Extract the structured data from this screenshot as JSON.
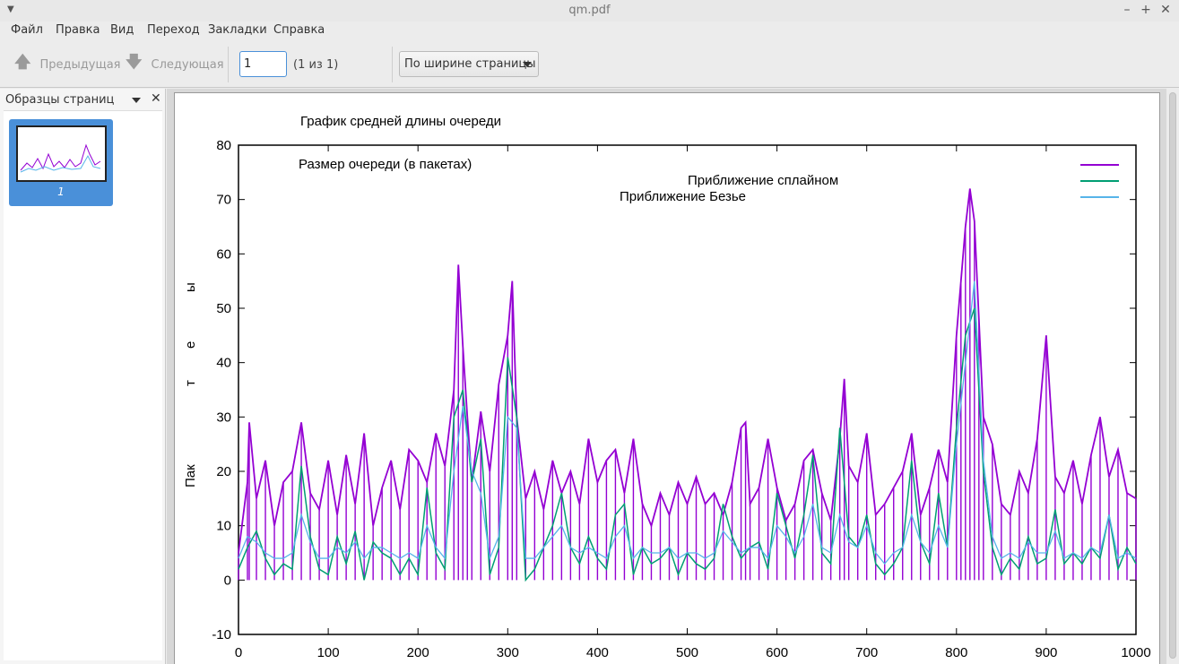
{
  "window": {
    "title": "qm.pdf"
  },
  "menu": [
    "Файл",
    "Правка",
    "Вид",
    "Переход",
    "Закладки",
    "Справка"
  ],
  "toolbar": {
    "prev_label": "Предыдущая",
    "next_label": "Следующая",
    "page_value": "1",
    "page_count": "(1 из 1)",
    "zoom_value": "По ширине страницы"
  },
  "sidebar": {
    "title": "Образцы страниц",
    "thumb_number": "1"
  },
  "colors": {
    "accent": "#4a90d9",
    "series1": "#9400d3",
    "series2": "#009e73",
    "series3": "#56b4e9"
  },
  "chart_data": {
    "type": "line",
    "title": "График средней длины очереди",
    "xlabel": "",
    "ylabel": "Пак      т    е    ы",
    "xlim": [
      0,
      1000
    ],
    "ylim": [
      -10,
      80
    ],
    "xticks": [
      0,
      100,
      200,
      300,
      400,
      500,
      600,
      700,
      800,
      900,
      1000
    ],
    "yticks": [
      -10,
      0,
      10,
      20,
      30,
      40,
      50,
      60,
      70,
      80
    ],
    "legend_position": "top-right",
    "series": [
      {
        "name": "Размер очереди (в пакетах)",
        "x": [
          0,
          10,
          12,
          20,
          30,
          40,
          50,
          60,
          70,
          80,
          90,
          100,
          110,
          120,
          130,
          140,
          150,
          160,
          170,
          180,
          190,
          200,
          210,
          220,
          230,
          240,
          245,
          250,
          255,
          260,
          270,
          280,
          290,
          300,
          305,
          310,
          320,
          330,
          340,
          350,
          360,
          370,
          380,
          390,
          400,
          410,
          420,
          430,
          440,
          450,
          460,
          470,
          480,
          490,
          500,
          510,
          520,
          530,
          540,
          550,
          560,
          565,
          570,
          580,
          590,
          600,
          610,
          620,
          630,
          640,
          650,
          660,
          670,
          675,
          680,
          690,
          700,
          710,
          720,
          730,
          740,
          750,
          760,
          770,
          780,
          790,
          800,
          805,
          810,
          815,
          820,
          825,
          830,
          840,
          850,
          860,
          870,
          880,
          890,
          900,
          910,
          920,
          930,
          940,
          950,
          960,
          970,
          980,
          990,
          1000
        ],
        "y": [
          5,
          18,
          29,
          15,
          22,
          10,
          18,
          20,
          29,
          16,
          13,
          22,
          12,
          23,
          14,
          27,
          10,
          17,
          22,
          13,
          24,
          22,
          18,
          27,
          21,
          35,
          58,
          43,
          30,
          18,
          31,
          20,
          36,
          45,
          55,
          30,
          15,
          20,
          13,
          22,
          16,
          20,
          14,
          26,
          18,
          22,
          24,
          16,
          26,
          14,
          10,
          16,
          12,
          18,
          14,
          19,
          14,
          16,
          12,
          18,
          28,
          29,
          14,
          17,
          26,
          17,
          11,
          14,
          22,
          24,
          16,
          11,
          26,
          37,
          21,
          18,
          27,
          12,
          14,
          17,
          20,
          27,
          12,
          17,
          24,
          18,
          45,
          55,
          65,
          72,
          66,
          48,
          30,
          25,
          14,
          12,
          20,
          16,
          26,
          45,
          19,
          16,
          22,
          14,
          23,
          30,
          19,
          24,
          16,
          15
        ]
      },
      {
        "name": "Приближение сплайном",
        "x": [
          0,
          10,
          20,
          30,
          40,
          50,
          60,
          70,
          80,
          90,
          100,
          110,
          120,
          130,
          140,
          150,
          160,
          170,
          180,
          190,
          200,
          210,
          220,
          230,
          240,
          250,
          260,
          270,
          280,
          290,
          300,
          310,
          320,
          330,
          340,
          350,
          360,
          370,
          380,
          390,
          400,
          410,
          420,
          430,
          440,
          450,
          460,
          470,
          480,
          490,
          500,
          510,
          520,
          530,
          540,
          550,
          560,
          570,
          580,
          590,
          600,
          610,
          620,
          630,
          640,
          650,
          660,
          670,
          680,
          690,
          700,
          710,
          720,
          730,
          740,
          750,
          760,
          770,
          780,
          790,
          800,
          810,
          820,
          830,
          840,
          850,
          860,
          870,
          880,
          890,
          900,
          910,
          920,
          930,
          940,
          950,
          960,
          970,
          980,
          990,
          1000
        ],
        "y": [
          2,
          6,
          9,
          4,
          1,
          3,
          2,
          21,
          8,
          2,
          1,
          8,
          3,
          9,
          0,
          7,
          5,
          4,
          1,
          4,
          1,
          17,
          5,
          2,
          30,
          35,
          18,
          26,
          1,
          6,
          41,
          30,
          0,
          2,
          6,
          10,
          16,
          6,
          3,
          8,
          4,
          2,
          12,
          14,
          1,
          6,
          3,
          4,
          6,
          1,
          5,
          3,
          2,
          4,
          14,
          8,
          4,
          6,
          7,
          2,
          16,
          10,
          4,
          12,
          23,
          5,
          3,
          28,
          8,
          6,
          12,
          3,
          1,
          3,
          6,
          22,
          7,
          3,
          16,
          6,
          28,
          45,
          50,
          20,
          6,
          1,
          4,
          2,
          8,
          3,
          4,
          13,
          3,
          5,
          3,
          6,
          4,
          12,
          2,
          6,
          3
        ]
      },
      {
        "name": "Приближение Безье",
        "x": [
          0,
          10,
          20,
          30,
          40,
          50,
          60,
          70,
          80,
          90,
          100,
          110,
          120,
          130,
          140,
          150,
          160,
          170,
          180,
          190,
          200,
          210,
          220,
          230,
          240,
          250,
          260,
          270,
          280,
          290,
          300,
          310,
          320,
          330,
          340,
          350,
          360,
          370,
          380,
          390,
          400,
          410,
          420,
          430,
          440,
          450,
          460,
          470,
          480,
          490,
          500,
          510,
          520,
          530,
          540,
          550,
          560,
          570,
          580,
          590,
          600,
          610,
          620,
          630,
          640,
          650,
          660,
          670,
          680,
          690,
          700,
          710,
          720,
          730,
          740,
          750,
          760,
          770,
          780,
          790,
          800,
          810,
          820,
          830,
          840,
          850,
          860,
          870,
          880,
          890,
          900,
          910,
          920,
          930,
          940,
          950,
          960,
          970,
          980,
          990,
          1000
        ],
        "y": [
          4,
          8,
          7,
          5,
          4,
          4,
          5,
          12,
          7,
          4,
          4,
          6,
          5,
          7,
          4,
          6,
          6,
          5,
          4,
          5,
          4,
          10,
          6,
          4,
          20,
          32,
          20,
          16,
          4,
          8,
          30,
          28,
          4,
          4,
          6,
          8,
          10,
          6,
          5,
          6,
          5,
          4,
          8,
          10,
          4,
          6,
          5,
          5,
          6,
          4,
          5,
          5,
          4,
          5,
          9,
          7,
          5,
          6,
          6,
          4,
          10,
          8,
          5,
          8,
          14,
          6,
          5,
          12,
          7,
          6,
          10,
          5,
          3,
          5,
          6,
          12,
          7,
          5,
          10,
          6,
          25,
          40,
          55,
          22,
          8,
          4,
          5,
          4,
          7,
          5,
          5,
          9,
          4,
          5,
          4,
          6,
          5,
          12,
          4,
          5,
          4
        ]
      }
    ]
  }
}
